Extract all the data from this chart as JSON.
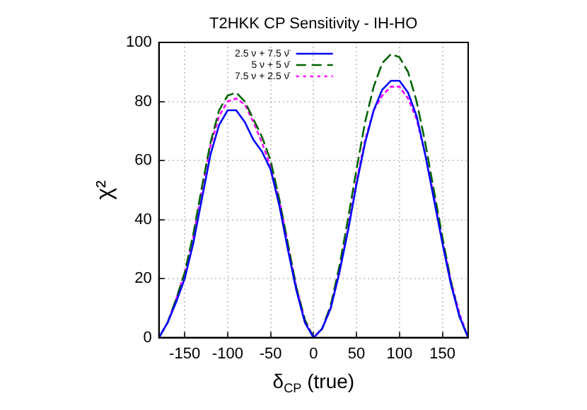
{
  "chart_data": {
    "type": "line",
    "title": "T2HKK CP Sensitivity - IH-HO",
    "xlabel": "δ$_{CP}$ (true)",
    "ylabel": "χ²",
    "x": [
      -180,
      -170,
      -160,
      -150,
      -140,
      -130,
      -120,
      -110,
      -100,
      -90,
      -80,
      -70,
      -60,
      -50,
      -40,
      -30,
      -20,
      -10,
      0,
      10,
      20,
      30,
      40,
      50,
      60,
      70,
      80,
      90,
      100,
      110,
      120,
      130,
      140,
      150,
      160,
      170,
      180
    ],
    "series": [
      {
        "name": "2.5 ν + 7.5 ν̄",
        "color": "#0000ff",
        "line_style": "solid",
        "values": [
          0,
          5,
          12,
          20,
          32,
          47,
          62,
          72,
          77,
          77,
          73,
          67,
          63,
          57,
          45,
          30,
          16,
          5,
          0,
          3,
          10,
          22,
          36,
          52,
          66,
          77,
          84,
          87,
          87,
          83,
          75,
          62,
          47,
          32,
          18,
          7,
          0
        ]
      },
      {
        "name": "5 ν + 5 ν̄",
        "color": "#006400",
        "line_style": "dashed",
        "values": [
          0,
          5,
          13,
          22,
          35,
          51,
          66,
          77,
          82,
          83,
          80,
          74,
          68,
          60,
          47,
          32,
          17,
          6,
          0,
          3,
          11,
          24,
          40,
          57,
          73,
          85,
          93,
          96,
          95,
          90,
          80,
          66,
          50,
          34,
          19,
          7,
          0
        ]
      },
      {
        "name": "7.5 ν + 2.5 ν̄",
        "color": "#ff00ff",
        "line_style": "dotted",
        "values": [
          0,
          5,
          13,
          22,
          34,
          50,
          65,
          75,
          80,
          81,
          79,
          73,
          66,
          58,
          47,
          32,
          17,
          6,
          0,
          3,
          10,
          22,
          37,
          53,
          67,
          77,
          82,
          85,
          85,
          81,
          74,
          62,
          48,
          33,
          19,
          8,
          0
        ]
      }
    ],
    "xlim": [
      -180,
      180
    ],
    "xticks": [
      -150,
      -100,
      -50,
      0,
      50,
      100,
      150
    ],
    "ylim": [
      0,
      100
    ],
    "yticks": [
      0,
      20,
      40,
      60,
      80,
      100
    ],
    "grid": true,
    "legend": "top left",
    "marker": "none"
  }
}
